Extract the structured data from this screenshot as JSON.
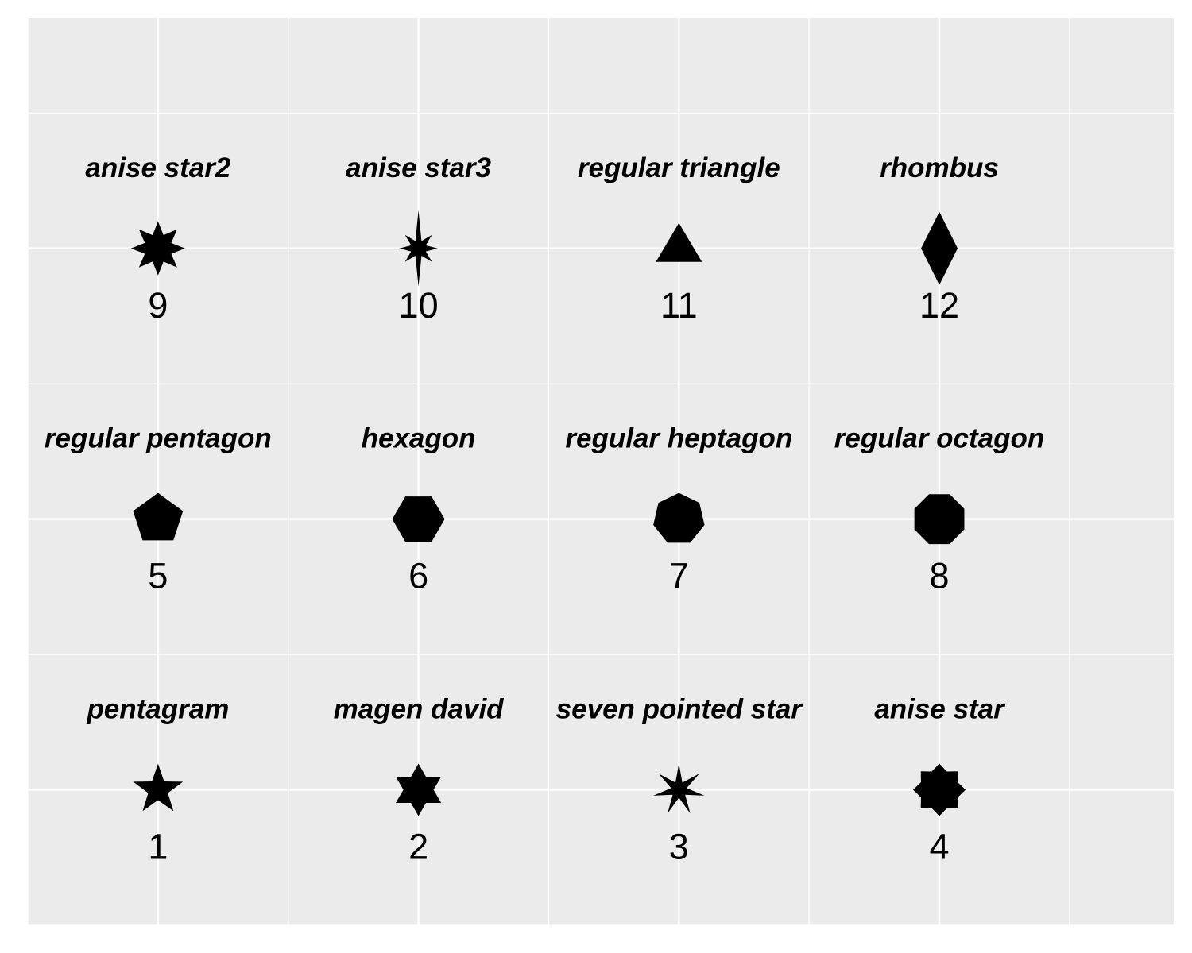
{
  "chart_data": {
    "type": "scatter",
    "title": "",
    "xlabel": "",
    "ylabel": "",
    "xlim": [
      0.5,
      4.9
    ],
    "ylim": [
      0.5,
      3.85
    ],
    "grid": true,
    "colors": {
      "panel": "#EBEBEB",
      "grid": "#FFFFFF",
      "mark": "#000000"
    },
    "points": [
      {
        "x": 1,
        "y": 1,
        "id": "1",
        "label": "pentagram",
        "shape": "pentagram"
      },
      {
        "x": 2,
        "y": 1,
        "id": "2",
        "label": "magen david",
        "shape": "magen-david"
      },
      {
        "x": 3,
        "y": 1,
        "id": "3",
        "label": "seven pointed star",
        "shape": "seven-pointed-star"
      },
      {
        "x": 4,
        "y": 1,
        "id": "4",
        "label": "anise star",
        "shape": "anise-star"
      },
      {
        "x": 1,
        "y": 2,
        "id": "5",
        "label": "regular pentagon",
        "shape": "regular-pentagon"
      },
      {
        "x": 2,
        "y": 2,
        "id": "6",
        "label": "hexagon",
        "shape": "hexagon"
      },
      {
        "x": 3,
        "y": 2,
        "id": "7",
        "label": "regular heptagon",
        "shape": "regular-heptagon"
      },
      {
        "x": 4,
        "y": 2,
        "id": "8",
        "label": "regular octagon",
        "shape": "regular-octagon"
      },
      {
        "x": 1,
        "y": 3,
        "id": "9",
        "label": "anise star2",
        "shape": "anise-star2"
      },
      {
        "x": 2,
        "y": 3,
        "id": "10",
        "label": "anise star3",
        "shape": "anise-star3"
      },
      {
        "x": 3,
        "y": 3,
        "id": "11",
        "label": "regular triangle",
        "shape": "regular-triangle"
      },
      {
        "x": 4,
        "y": 3,
        "id": "12",
        "label": "rhombus",
        "shape": "rhombus"
      }
    ]
  }
}
